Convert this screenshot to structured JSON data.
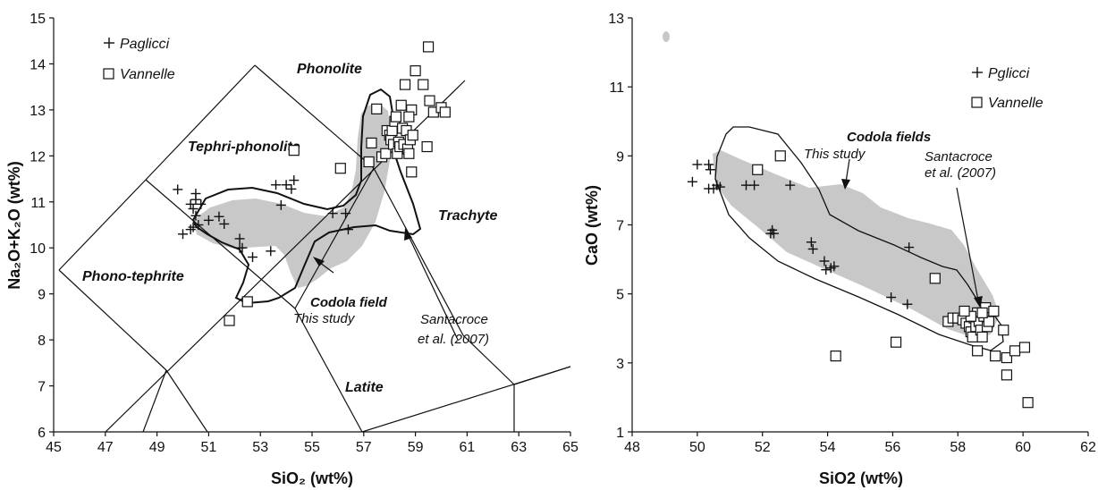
{
  "chart_data": [
    {
      "type": "scatter",
      "title": "",
      "xlabel": "SiO₂ (wt%)",
      "ylabel": "Na₂O+K₂O (wt%)",
      "xlim": [
        45,
        65
      ],
      "ylim": [
        6,
        15
      ],
      "xticks": [
        "45",
        "47",
        "49",
        "51",
        "53",
        "55",
        "57",
        "59",
        "61",
        "63",
        "65"
      ],
      "yticks": [
        "6",
        "7",
        "8",
        "9",
        "10",
        "11",
        "12",
        "13",
        "14",
        "15"
      ],
      "legend": [
        "Paglicci",
        "Vannelle"
      ],
      "field_labels": {
        "phonolite": "Phonolite",
        "tephri_phonolite": "Tephri-phonolite",
        "trachyte": "Trachyte",
        "phono_tephrite": "Phono-tephrite",
        "latite": "Latite"
      },
      "annotations": {
        "codola": "Codola field",
        "this_study": "This study",
        "santacroce_1": "Santacroce",
        "santacroce_2": "et al. (2007)"
      },
      "series": [
        {
          "name": "Paglicci",
          "marker": "plus",
          "points": [
            [
              49.8,
              11.27
            ],
            [
              50.5,
              11.18
            ],
            [
              50.5,
              11.05
            ],
            [
              50.3,
              10.95
            ],
            [
              50.7,
              10.95
            ],
            [
              50.4,
              10.85
            ],
            [
              50.5,
              10.7
            ],
            [
              51.0,
              10.6
            ],
            [
              50.6,
              10.5
            ],
            [
              50.4,
              10.45
            ],
            [
              50.3,
              10.4
            ],
            [
              50.0,
              10.3
            ],
            [
              51.4,
              10.68
            ],
            [
              51.6,
              10.52
            ],
            [
              52.2,
              10.2
            ],
            [
              52.2,
              10.0
            ],
            [
              52.3,
              10.0
            ],
            [
              52.7,
              9.8
            ],
            [
              53.4,
              9.93
            ],
            [
              53.6,
              11.37
            ],
            [
              54.0,
              11.37
            ],
            [
              54.3,
              11.47
            ],
            [
              54.2,
              11.28
            ],
            [
              53.8,
              10.93
            ],
            [
              55.8,
              10.75
            ],
            [
              56.3,
              10.75
            ],
            [
              56.4,
              10.4
            ]
          ]
        },
        {
          "name": "Vannelle",
          "marker": "square",
          "points": [
            [
              51.8,
              8.42
            ],
            [
              52.5,
              8.83
            ],
            [
              54.3,
              12.12
            ],
            [
              56.1,
              11.73
            ],
            [
              57.2,
              11.87
            ],
            [
              57.3,
              12.28
            ],
            [
              57.5,
              13.02
            ],
            [
              57.7,
              11.98
            ],
            [
              57.85,
              12.05
            ],
            [
              57.9,
              12.55
            ],
            [
              58.0,
              12.45
            ],
            [
              58.05,
              12.35
            ],
            [
              58.1,
              12.55
            ],
            [
              58.15,
              12.25
            ],
            [
              58.2,
              12.75
            ],
            [
              58.25,
              12.85
            ],
            [
              58.3,
              12.05
            ],
            [
              58.35,
              12.3
            ],
            [
              58.4,
              12.2
            ],
            [
              58.45,
              13.1
            ],
            [
              58.5,
              12.6
            ],
            [
              58.55,
              12.25
            ],
            [
              58.6,
              13.55
            ],
            [
              58.65,
              12.55
            ],
            [
              58.7,
              12.15
            ],
            [
              58.75,
              12.05
            ],
            [
              58.8,
              12.35
            ],
            [
              58.85,
              13.0
            ],
            [
              58.85,
              11.65
            ],
            [
              58.9,
              12.45
            ],
            [
              59.0,
              13.85
            ],
            [
              59.3,
              13.55
            ],
            [
              59.45,
              12.2
            ],
            [
              59.5,
              14.37
            ],
            [
              59.55,
              13.2
            ],
            [
              59.7,
              12.95
            ],
            [
              60.0,
              13.05
            ],
            [
              60.15,
              12.95
            ],
            [
              58.75,
              12.85
            ]
          ]
        }
      ]
    },
    {
      "type": "scatter",
      "title": "",
      "xlabel": "SiO2 (wt%)",
      "ylabel": "CaO (wt%)",
      "xlim": [
        48,
        62
      ],
      "ylim": [
        1,
        13
      ],
      "xticks": [
        "48",
        "50",
        "52",
        "54",
        "56",
        "58",
        "60",
        "62"
      ],
      "yticks": [
        "1",
        "3",
        "5",
        "7",
        "9",
        "11",
        "13"
      ],
      "legend": [
        "Pglicci",
        "Vannelle"
      ],
      "annotations": {
        "codola": "Codola fields",
        "this_study": "This study",
        "santacroce_1": "Santacroce",
        "santacroce_2": "et al. (2007)"
      },
      "series": [
        {
          "name": "Pglicci",
          "marker": "plus",
          "points": [
            [
              49.85,
              8.25
            ],
            [
              50.0,
              8.75
            ],
            [
              50.35,
              8.75
            ],
            [
              50.4,
              8.6
            ],
            [
              50.35,
              8.05
            ],
            [
              50.5,
              8.05
            ],
            [
              50.6,
              8.15
            ],
            [
              50.7,
              8.1
            ],
            [
              51.5,
              8.15
            ],
            [
              51.75,
              8.15
            ],
            [
              52.85,
              8.15
            ],
            [
              52.25,
              6.75
            ],
            [
              52.3,
              6.85
            ],
            [
              52.35,
              6.75
            ],
            [
              53.5,
              6.5
            ],
            [
              53.55,
              6.3
            ],
            [
              53.9,
              5.95
            ],
            [
              53.95,
              5.7
            ],
            [
              54.1,
              5.75
            ],
            [
              54.2,
              5.8
            ],
            [
              55.95,
              4.9
            ],
            [
              56.45,
              4.7
            ],
            [
              56.5,
              6.35
            ]
          ]
        },
        {
          "name": "Vannelle",
          "marker": "square",
          "points": [
            [
              51.85,
              8.6
            ],
            [
              52.55,
              9.0
            ],
            [
              54.25,
              3.2
            ],
            [
              56.1,
              3.6
            ],
            [
              57.3,
              5.45
            ],
            [
              57.7,
              4.2
            ],
            [
              57.85,
              4.3
            ],
            [
              58.0,
              4.3
            ],
            [
              58.15,
              4.25
            ],
            [
              58.25,
              4.15
            ],
            [
              58.35,
              4.05
            ],
            [
              58.4,
              3.9
            ],
            [
              58.45,
              3.75
            ],
            [
              58.5,
              4.3
            ],
            [
              58.55,
              4.05
            ],
            [
              58.6,
              4.45
            ],
            [
              58.65,
              4.2
            ],
            [
              58.7,
              3.95
            ],
            [
              58.75,
              3.75
            ],
            [
              58.8,
              4.35
            ],
            [
              58.85,
              4.6
            ],
            [
              58.9,
              4.05
            ],
            [
              58.95,
              4.2
            ],
            [
              59.1,
              4.5
            ],
            [
              58.6,
              3.35
            ],
            [
              59.15,
              3.2
            ],
            [
              59.4,
              3.95
            ],
            [
              59.5,
              3.15
            ],
            [
              59.5,
              2.65
            ],
            [
              59.75,
              3.35
            ],
            [
              60.05,
              3.45
            ],
            [
              60.15,
              1.85
            ],
            [
              58.4,
              4.35
            ],
            [
              58.2,
              4.5
            ],
            [
              58.75,
              4.45
            ]
          ]
        }
      ]
    }
  ]
}
